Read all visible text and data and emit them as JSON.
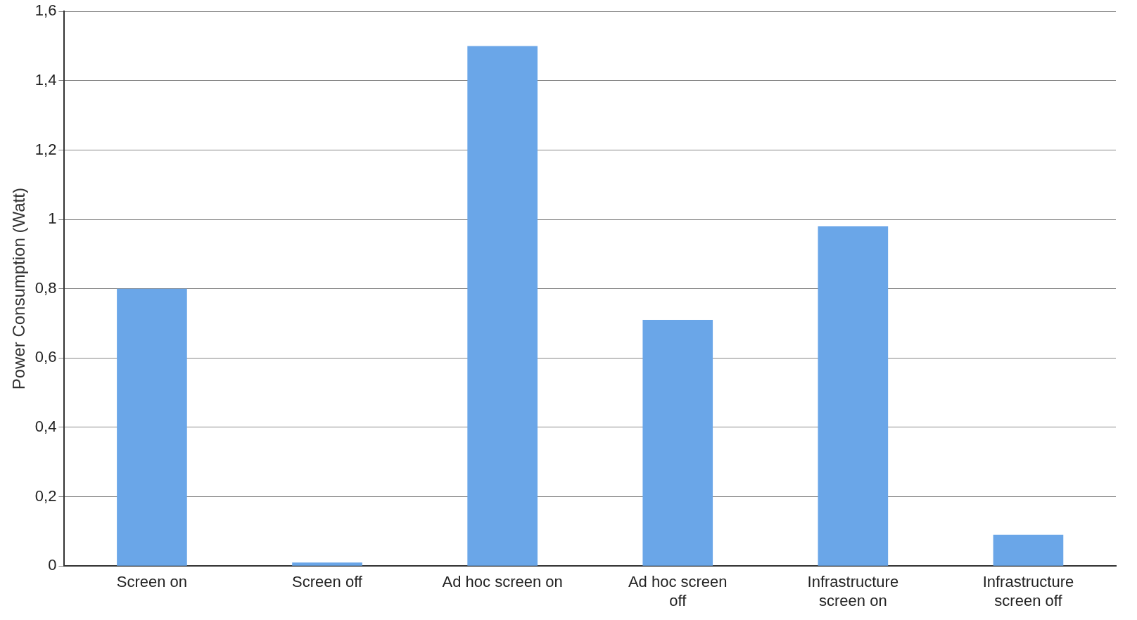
{
  "chart_data": {
    "type": "bar",
    "ylabel": "Power Consumption (Watt)",
    "categories": [
      "Screen on",
      "Screen off",
      "Ad hoc screen on",
      "Ad hoc screen off",
      "Infrastructure screen on",
      "Infrastructure screen off"
    ],
    "values": [
      0.8,
      0.01,
      1.5,
      0.71,
      0.98,
      0.09
    ],
    "color": "#6aa6e8",
    "ylim": [
      0,
      1.6
    ],
    "yticks": [
      0,
      {
        "value": 0.2,
        "label": "0,2"
      },
      {
        "value": 0.4,
        "label": "0,4"
      },
      {
        "value": 0.6,
        "label": "0,6"
      },
      {
        "value": 0.8,
        "label": "0,8"
      },
      1,
      {
        "value": 1.2,
        "label": "1,2"
      },
      {
        "value": 1.4,
        "label": "1,4"
      },
      {
        "value": 1.6,
        "label": "1,6"
      }
    ],
    "grid": "y",
    "legend": false
  }
}
